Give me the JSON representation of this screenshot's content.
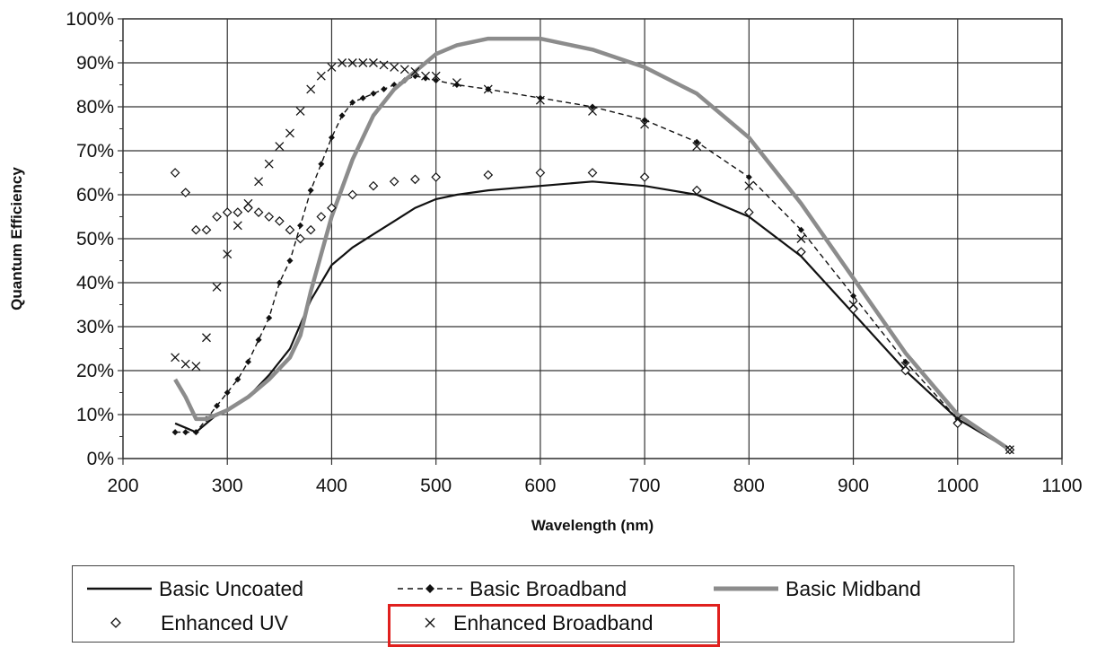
{
  "chart_data": {
    "type": "line",
    "xlabel": "Wavelength (nm)",
    "ylabel": "Quantum Efficiency",
    "xlim": [
      200,
      1100
    ],
    "ylim": [
      0,
      100
    ],
    "x_ticks": [
      "200",
      "300",
      "400",
      "500",
      "600",
      "700",
      "800",
      "900",
      "1000",
      "1100"
    ],
    "y_ticks": [
      "0%",
      "10%",
      "20%",
      "30%",
      "40%",
      "50%",
      "60%",
      "70%",
      "80%",
      "90%",
      "100%"
    ],
    "grid": true,
    "legend_position": "bottom",
    "highlighted_legend_entry": "Enhanced Broadband",
    "series": [
      {
        "name": "Basic Uncoated",
        "style": "solid-line",
        "color": "#111111",
        "points": [
          [
            250,
            8
          ],
          [
            260,
            7
          ],
          [
            270,
            6
          ],
          [
            280,
            8
          ],
          [
            290,
            10
          ],
          [
            300,
            11
          ],
          [
            320,
            14
          ],
          [
            340,
            19
          ],
          [
            360,
            25
          ],
          [
            380,
            36
          ],
          [
            400,
            44
          ],
          [
            420,
            48
          ],
          [
            440,
            51
          ],
          [
            460,
            54
          ],
          [
            480,
            57
          ],
          [
            500,
            59
          ],
          [
            520,
            60
          ],
          [
            550,
            61
          ],
          [
            600,
            62
          ],
          [
            650,
            63
          ],
          [
            700,
            62
          ],
          [
            750,
            60
          ],
          [
            800,
            55
          ],
          [
            850,
            46
          ],
          [
            900,
            33
          ],
          [
            950,
            20
          ],
          [
            1000,
            9
          ],
          [
            1050,
            2
          ]
        ]
      },
      {
        "name": "Basic Broadband",
        "style": "dashed-line-diamond-markers",
        "color": "#111111",
        "points": [
          [
            250,
            6
          ],
          [
            260,
            6
          ],
          [
            270,
            6
          ],
          [
            280,
            9
          ],
          [
            290,
            12
          ],
          [
            300,
            15
          ],
          [
            310,
            18
          ],
          [
            320,
            22
          ],
          [
            330,
            27
          ],
          [
            340,
            32
          ],
          [
            350,
            40
          ],
          [
            360,
            45
          ],
          [
            370,
            53
          ],
          [
            380,
            61
          ],
          [
            390,
            67
          ],
          [
            400,
            73
          ],
          [
            410,
            78
          ],
          [
            420,
            81
          ],
          [
            430,
            82
          ],
          [
            440,
            83
          ],
          [
            450,
            84
          ],
          [
            460,
            85
          ],
          [
            470,
            86
          ],
          [
            480,
            87
          ],
          [
            490,
            86.5
          ],
          [
            500,
            86
          ],
          [
            520,
            85
          ],
          [
            550,
            84
          ],
          [
            600,
            82
          ],
          [
            650,
            80
          ],
          [
            700,
            77
          ],
          [
            750,
            72
          ],
          [
            800,
            64
          ],
          [
            850,
            52
          ],
          [
            900,
            37
          ],
          [
            950,
            22
          ],
          [
            1000,
            9
          ],
          [
            1050,
            2
          ]
        ]
      },
      {
        "name": "Basic Midband",
        "style": "thick-gray-line",
        "color": "#8c8c8c",
        "points": [
          [
            250,
            18
          ],
          [
            260,
            14
          ],
          [
            270,
            9
          ],
          [
            280,
            9
          ],
          [
            300,
            11
          ],
          [
            320,
            14
          ],
          [
            340,
            18
          ],
          [
            360,
            23
          ],
          [
            370,
            28
          ],
          [
            380,
            38
          ],
          [
            400,
            55
          ],
          [
            420,
            68
          ],
          [
            440,
            78
          ],
          [
            460,
            84
          ],
          [
            480,
            88
          ],
          [
            500,
            92
          ],
          [
            520,
            94
          ],
          [
            550,
            95.5
          ],
          [
            600,
            95.5
          ],
          [
            650,
            93
          ],
          [
            700,
            89
          ],
          [
            750,
            83
          ],
          [
            800,
            73
          ],
          [
            850,
            58
          ],
          [
            900,
            41
          ],
          [
            950,
            24
          ],
          [
            1000,
            10
          ],
          [
            1050,
            2
          ]
        ]
      },
      {
        "name": "Enhanced UV",
        "style": "open-diamond-markers",
        "color": "#111111",
        "points": [
          [
            250,
            65
          ],
          [
            260,
            60.5
          ],
          [
            270,
            52
          ],
          [
            280,
            52
          ],
          [
            290,
            55
          ],
          [
            300,
            56
          ],
          [
            310,
            56
          ],
          [
            320,
            57
          ],
          [
            330,
            56
          ],
          [
            340,
            55
          ],
          [
            350,
            54
          ],
          [
            360,
            52
          ],
          [
            370,
            50
          ],
          [
            380,
            52
          ],
          [
            390,
            55
          ],
          [
            400,
            57
          ],
          [
            420,
            60
          ],
          [
            440,
            62
          ],
          [
            460,
            63
          ],
          [
            480,
            63.5
          ],
          [
            500,
            64
          ],
          [
            550,
            64.5
          ],
          [
            600,
            65
          ],
          [
            650,
            65
          ],
          [
            700,
            64
          ],
          [
            750,
            61
          ],
          [
            800,
            56
          ],
          [
            850,
            47
          ],
          [
            900,
            34
          ],
          [
            950,
            20
          ],
          [
            1000,
            8
          ],
          [
            1050,
            2
          ]
        ]
      },
      {
        "name": "Enhanced Broadband",
        "style": "x-markers",
        "color": "#111111",
        "points": [
          [
            250,
            23
          ],
          [
            260,
            21.5
          ],
          [
            270,
            21
          ],
          [
            280,
            27.5
          ],
          [
            290,
            39
          ],
          [
            300,
            46.5
          ],
          [
            310,
            53
          ],
          [
            320,
            58
          ],
          [
            330,
            63
          ],
          [
            340,
            67
          ],
          [
            350,
            71
          ],
          [
            360,
            74
          ],
          [
            370,
            79
          ],
          [
            380,
            84
          ],
          [
            390,
            87
          ],
          [
            400,
            89
          ],
          [
            410,
            90
          ],
          [
            420,
            90
          ],
          [
            430,
            90
          ],
          [
            440,
            90
          ],
          [
            450,
            89.5
          ],
          [
            460,
            89
          ],
          [
            470,
            88.5
          ],
          [
            480,
            88
          ],
          [
            490,
            87
          ],
          [
            500,
            87
          ],
          [
            520,
            85.5
          ],
          [
            550,
            84
          ],
          [
            600,
            81.5
          ],
          [
            650,
            79
          ],
          [
            700,
            76
          ],
          [
            750,
            71
          ],
          [
            800,
            62
          ],
          [
            850,
            50
          ],
          [
            900,
            35
          ],
          [
            950,
            21
          ],
          [
            1000,
            9
          ],
          [
            1050,
            2
          ]
        ]
      }
    ]
  },
  "legend": {
    "items": [
      {
        "label": "Basic Uncoated"
      },
      {
        "label": "Basic Broadband"
      },
      {
        "label": "Basic Midband"
      },
      {
        "label": "Enhanced UV"
      },
      {
        "label": "Enhanced Broadband"
      }
    ]
  },
  "colors": {
    "highlight": "#e0201e",
    "gray_series": "#8c8c8c",
    "ink": "#111111"
  }
}
